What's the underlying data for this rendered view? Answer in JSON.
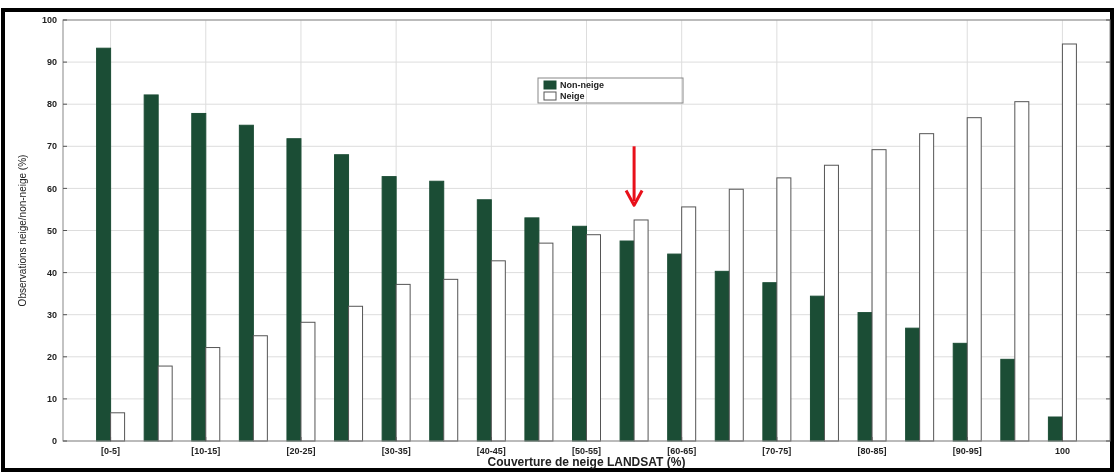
{
  "chart_data": {
    "type": "bar",
    "xlabel": "Couverture de neige LANDSAT (%)",
    "ylabel": "Observations neige/non-neige (%)",
    "categories": [
      "[0-5]",
      null,
      "[10-15]",
      null,
      "[20-25]",
      null,
      "[30-35]",
      null,
      "[40-45]",
      null,
      "[50-55]",
      null,
      "[60-65]",
      null,
      "[70-75]",
      null,
      "[80-85]",
      null,
      "[90-95]",
      null,
      "100"
    ],
    "series": [
      {
        "name": "Non-neige",
        "color": "#1b4d35",
        "values": [
          93.3,
          82.2,
          77.8,
          75,
          71.8,
          68,
          62.8,
          61.7,
          57.3,
          53,
          51,
          47.5,
          44.4,
          40.3,
          37.6,
          34.4,
          30.5,
          26.8,
          23.2,
          19.4,
          5.7
        ]
      },
      {
        "name": "Neige",
        "color": "#ffffff",
        "values": [
          6.7,
          17.8,
          22.2,
          25,
          28.2,
          32,
          37.2,
          38.4,
          42.8,
          47,
          49,
          52.5,
          55.6,
          59.8,
          62.5,
          65.5,
          69.2,
          73,
          76.8,
          80.6,
          94.3
        ]
      }
    ],
    "ylim": [
      0,
      100
    ],
    "yticks": [
      0,
      10,
      20,
      30,
      40,
      50,
      60,
      70,
      80,
      90,
      100
    ],
    "grid": true,
    "legend": "top"
  }
}
